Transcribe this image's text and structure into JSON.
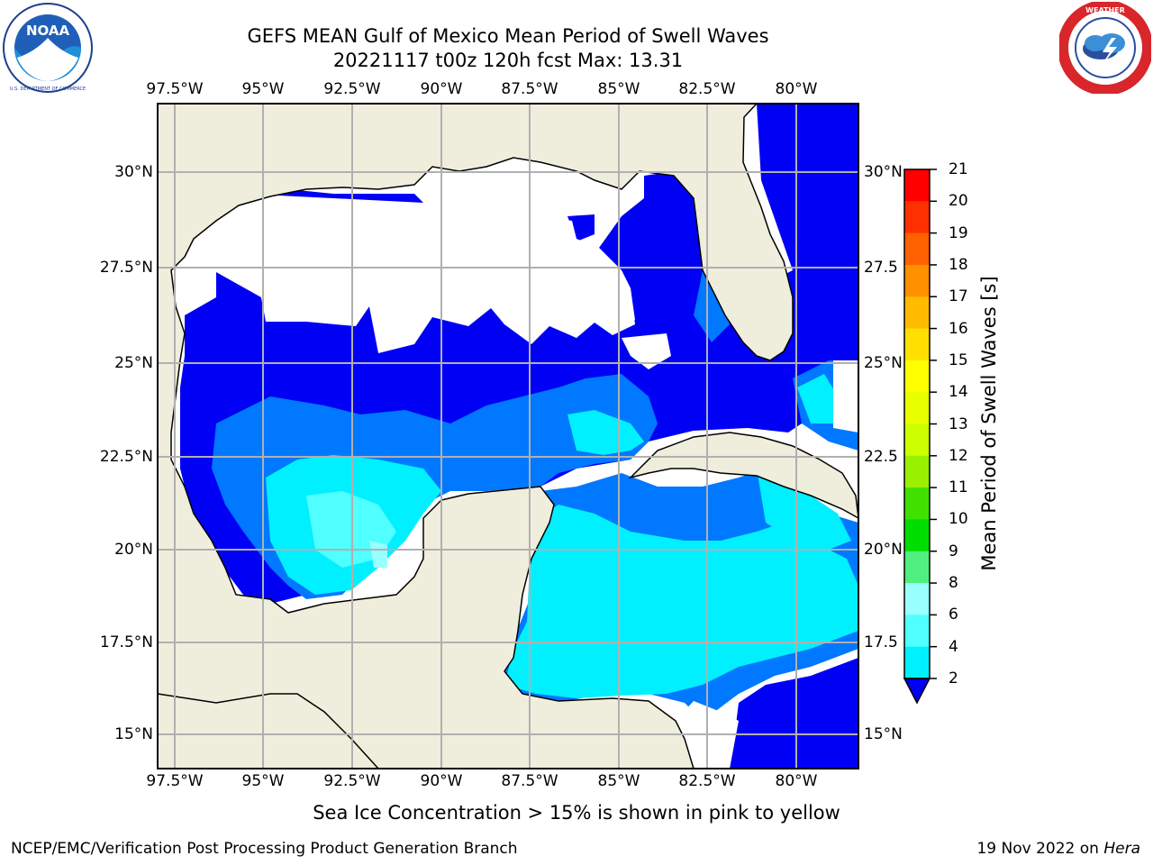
{
  "title": {
    "line1": "GEFS MEAN Gulf of Mexico Mean Period of Swell Waves",
    "line2": "20221117 t00z 120h fcst   Max: 13.31"
  },
  "logos": {
    "left": {
      "text": "NOAA",
      "ring_text": "NATIONAL OCEANIC AND ATMOSPHERIC ADMINISTRATION · U.S. DEPARTMENT OF COMMERCE",
      "icon": "noaa-logo"
    },
    "right": {
      "ring_text": "NATIONAL WEATHER SERVICE",
      "icon": "nws-logo"
    }
  },
  "map": {
    "lon_labels": [
      "97.5°W",
      "95°W",
      "92.5°W",
      "90°W",
      "87.5°W",
      "85°W",
      "82.5°W",
      "80°W"
    ],
    "lat_labels_left": [
      "30°N",
      "27.5°N",
      "25°N",
      "22.5°N",
      "20°N",
      "17.5°N",
      "15°N"
    ],
    "lat_labels_right": [
      "30°N",
      "27.5",
      "25°N",
      "22.5",
      "20°N",
      "17.5",
      "15°N"
    ],
    "colors": {
      "land": "#efeedd",
      "grid": "#b0b0b0",
      "coast": "#000000"
    }
  },
  "colorbar": {
    "label": "Mean Period of Swell Waves [s]",
    "ticks": [
      "21",
      "20",
      "19",
      "18",
      "17",
      "16",
      "15",
      "14",
      "13",
      "12",
      "11",
      "10",
      "9",
      "8",
      "6",
      "4",
      "2"
    ],
    "colors": [
      "#0000f5",
      "#0078ff",
      "#00f0ff",
      "#50ffff",
      "#99ffff",
      "#50f080",
      "#00dd00",
      "#40e000",
      "#99f000",
      "#ccff00",
      "#e8ff00",
      "#ffff00",
      "#ffe000",
      "#ffbb00",
      "#ff9000",
      "#ff6000",
      "#ff3000",
      "#ff0000"
    ]
  },
  "footer": {
    "note": "Sea Ice Concentration > 15% is shown in pink to yellow",
    "left": "NCEP/EMC/Verification Post Processing Product Generation Branch",
    "right_date": "19 Nov 2022 on ",
    "right_host": "Hera"
  }
}
